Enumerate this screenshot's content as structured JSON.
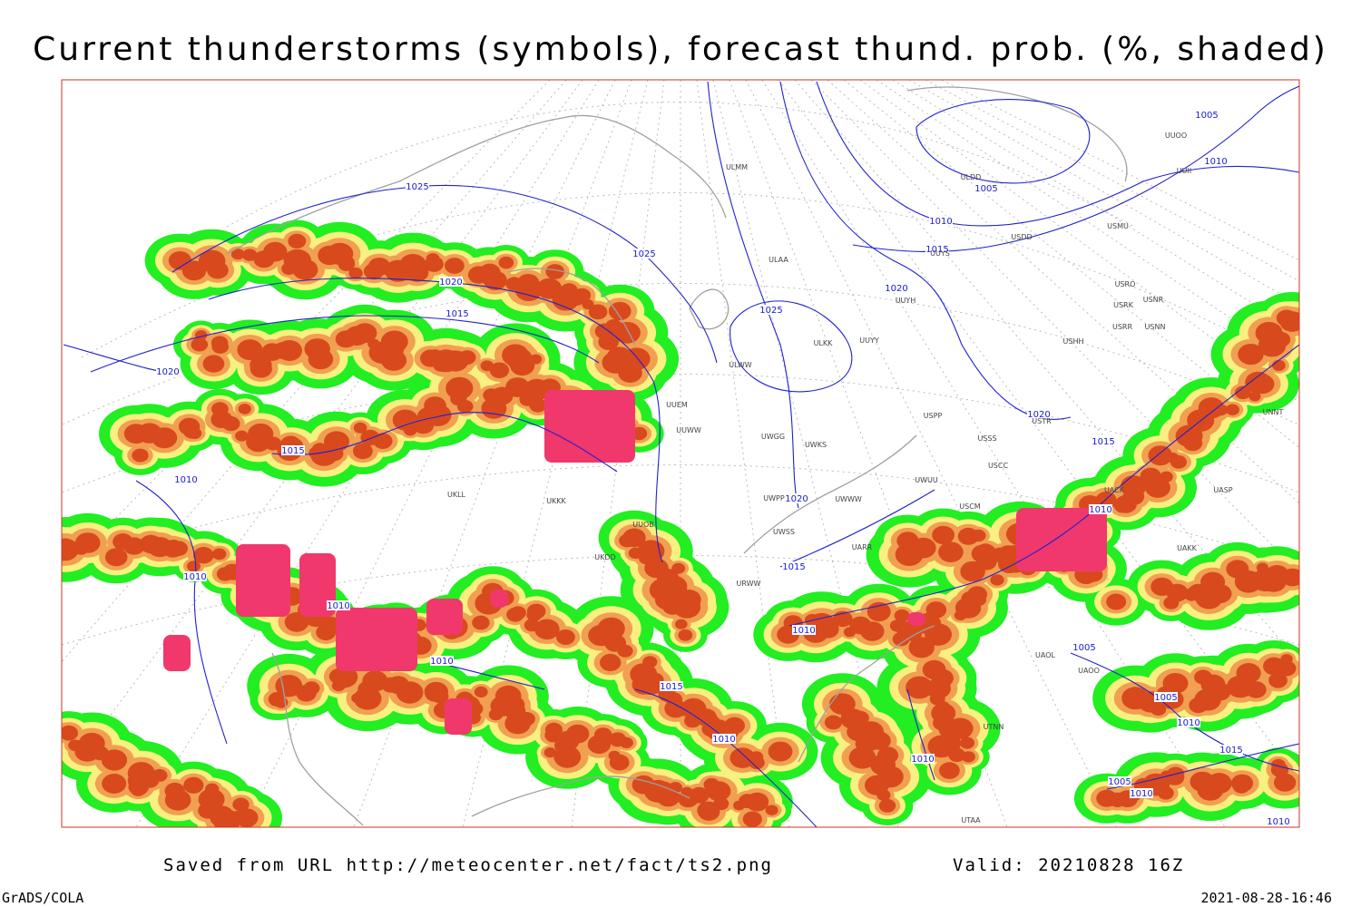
{
  "header": {
    "title": "Current thunderstorms (symbols), forecast thund. prob. (%, shaded)"
  },
  "footer": {
    "source": "Saved from URL http://meteocenter.net/fact/ts2.png",
    "valid": "Valid: 20210828 16Z",
    "software": "GrADS/COLA",
    "timestamp": "2021-08-28-16:46"
  },
  "isobar_labels": [
    1025,
    1025,
    1020,
    1015,
    1020,
    1015,
    1010,
    1010,
    1010,
    1010,
    1015,
    1010,
    1010,
    1015,
    1020,
    1025,
    1020,
    1015,
    1010,
    1005,
    1010,
    1005,
    1020,
    1015,
    1010,
    1005,
    1005,
    1010,
    1015,
    1005,
    1010,
    1010,
    1010
  ],
  "stations": [
    "ULMM",
    "ULDD",
    "UUOO",
    "UUII",
    "USMU",
    "USDD",
    "UUYS",
    "ULAA",
    "UUYH",
    "USRO",
    "USRK",
    "USNR",
    "USRR",
    "USNN",
    "ULKK",
    "UUYY",
    "ULWW",
    "USHH",
    "UUEM",
    "UUWW",
    "UWGG",
    "UWKS",
    "USPP",
    "USTR",
    "USSS",
    "USCC",
    "UWWW",
    "UWUU",
    "USCM",
    "UWPP",
    "UWSS",
    "UARR",
    "UACK",
    "UASP",
    "UAKK",
    "UAOL",
    "UAOO",
    "UTNN",
    "UTAA",
    "UUOB",
    "UKLL",
    "UKKK",
    "UKDD",
    "UNNT",
    "URWW"
  ]
}
